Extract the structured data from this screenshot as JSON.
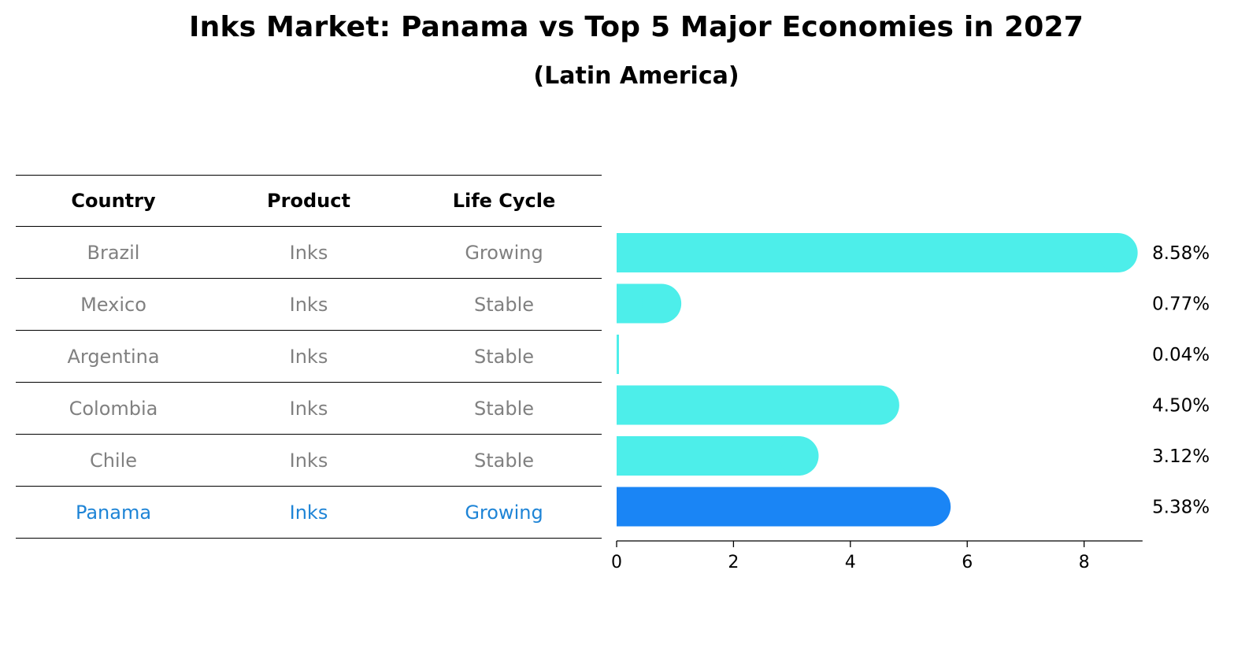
{
  "title": "Inks Market: Panama vs Top 5 Major Economies in 2027",
  "subtitle": "(Latin America)",
  "table": {
    "headers": [
      "Country",
      "Product",
      "Life Cycle"
    ],
    "rows": [
      {
        "country": "Brazil",
        "product": "Inks",
        "life_cycle": "Growing"
      },
      {
        "country": "Mexico",
        "product": "Inks",
        "life_cycle": "Stable"
      },
      {
        "country": "Argentina",
        "product": "Inks",
        "life_cycle": "Stable"
      },
      {
        "country": "Colombia",
        "product": "Inks",
        "life_cycle": "Stable"
      },
      {
        "country": "Chile",
        "product": "Inks",
        "life_cycle": "Stable"
      },
      {
        "country": "Panama",
        "product": "Inks",
        "life_cycle": "Growing"
      }
    ],
    "highlight_row": "Panama"
  },
  "colors": {
    "bar": "#4deeea",
    "highlight_bar": "#1a85f5",
    "muted_text": "#808080",
    "highlight_text": "#1e84d6"
  },
  "chart_data": {
    "type": "bar",
    "orientation": "horizontal",
    "categories": [
      "Brazil",
      "Mexico",
      "Argentina",
      "Colombia",
      "Chile",
      "Panama"
    ],
    "values": [
      8.58,
      0.77,
      0.04,
      4.5,
      3.12,
      5.38
    ],
    "value_labels": [
      "8.58%",
      "0.77%",
      "0.04%",
      "4.50%",
      "3.12%",
      "5.38%"
    ],
    "highlight": "Panama",
    "xticks": [
      "0",
      "2",
      "4",
      "6",
      "8"
    ],
    "xlim": [
      0,
      9
    ],
    "xlabel": "",
    "ylabel": "",
    "grid": false
  }
}
